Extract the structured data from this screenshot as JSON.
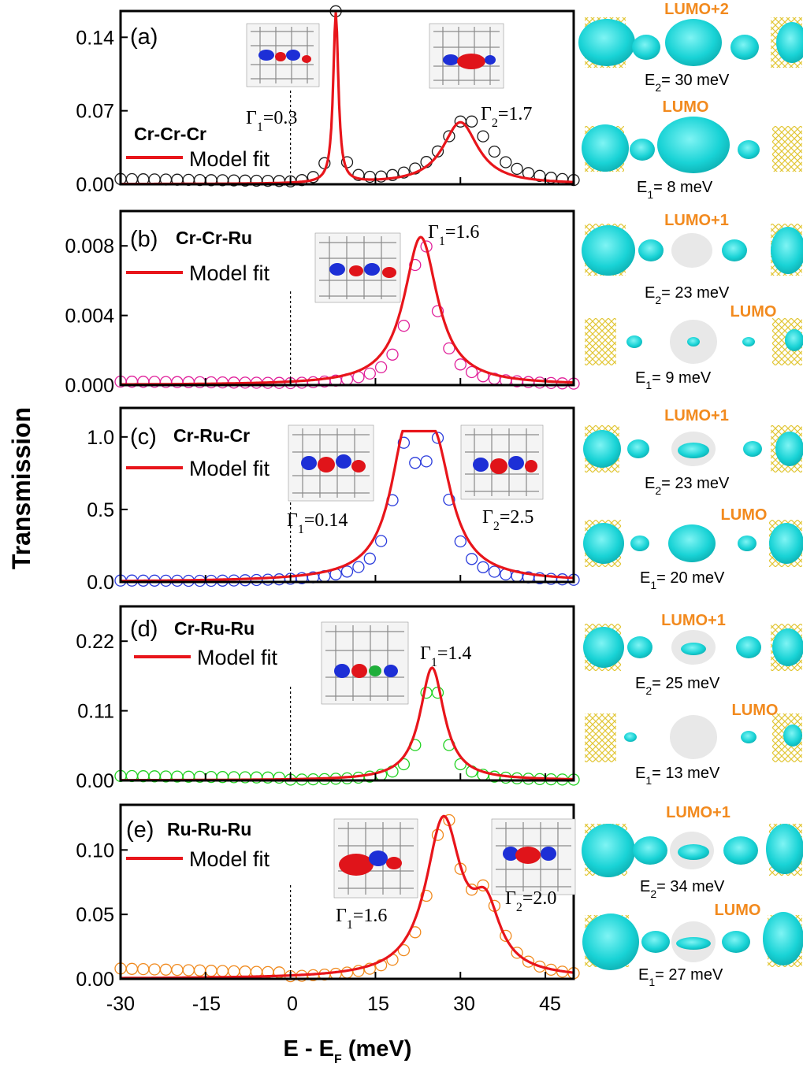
{
  "figure": {
    "ylabel": "Transmission",
    "xlabel_main": "E - E",
    "xlabel_sub": "F",
    "xlabel_unit": " (meV)",
    "legend_label": "Model fit",
    "fit_color": "#e8151b",
    "x_ticks": [
      "-30",
      "-15",
      "0",
      "15",
      "30",
      "45"
    ]
  },
  "chart_data": [
    {
      "type": "line",
      "panel": "(a)",
      "molecule": "Cr-Cr-Cr",
      "xlim": [
        -30,
        50
      ],
      "ylim": [
        0,
        0.165
      ],
      "y_ticks": [
        "0.00",
        "0.07",
        "0.14"
      ],
      "y_tick_values": [
        0,
        0.07,
        0.14
      ],
      "marker_color": "#1a1a1a",
      "gammas": [
        {
          "symbol": "Γ",
          "sub": "1",
          "value": "=0.3"
        },
        {
          "symbol": "Γ",
          "sub": "2",
          "value": "=1.7"
        }
      ],
      "series": [
        {
          "name": "Model fit",
          "kind": "line",
          "peaks": [
            {
              "E": 8,
              "width": 0.55,
              "height": 0.162
            },
            {
              "E": 30,
              "width": 3.8,
              "height": 0.059
            }
          ]
        },
        {
          "kind": "markers",
          "peaks": [
            {
              "E": 8,
              "width": 0.7,
              "height": 0.162
            },
            {
              "E": 31,
              "width": 5.0,
              "height": 0.062
            }
          ],
          "baseline_left": 0.005
        }
      ],
      "orbitals": [
        {
          "label": "LUMO+2",
          "E_label": "E",
          "E_sub": "2",
          "E_value": "= 30 meV"
        },
        {
          "label": "LUMO",
          "E_label": "E",
          "E_sub": "1",
          "E_value": "= 8 meV"
        }
      ]
    },
    {
      "type": "line",
      "panel": "(b)",
      "molecule": "Cr-Cr-Ru",
      "xlim": [
        -30,
        50
      ],
      "ylim": [
        0,
        0.01
      ],
      "y_ticks": [
        "0.000",
        "0.004",
        "0.008"
      ],
      "y_tick_values": [
        0,
        0.004,
        0.008
      ],
      "marker_color": "#e0209a",
      "gammas": [
        {
          "symbol": "Γ",
          "sub": "1",
          "value": "=1.6"
        }
      ],
      "series": [
        {
          "name": "Model fit",
          "kind": "line",
          "peaks": [
            {
              "E": 23,
              "width": 3.6,
              "height": 0.0085
            }
          ]
        },
        {
          "kind": "markers",
          "peaks": [
            {
              "E": 23.3,
              "width": 2.7,
              "height": 0.0085
            }
          ],
          "baseline_left": 0.0002
        }
      ],
      "orbitals": [
        {
          "label": "LUMO+1",
          "E_label": "E",
          "E_sub": "2",
          "E_value": "= 23 meV"
        },
        {
          "label": "LUMO",
          "E_label": "E",
          "E_sub": "1",
          "E_value": "= 9 meV"
        }
      ]
    },
    {
      "type": "line",
      "panel": "(c)",
      "molecule": "Cr-Ru-Cr",
      "xlim": [
        -30,
        50
      ],
      "ylim": [
        0,
        1.2
      ],
      "y_ticks": [
        "0.0",
        "0.5",
        "1.0"
      ],
      "y_tick_values": [
        0,
        0.5,
        1.0
      ],
      "marker_color": "#2a3bdc",
      "gammas": [
        {
          "symbol": "Γ",
          "sub": "1",
          "value": "=0.14"
        },
        {
          "symbol": "Γ",
          "sub": "2",
          "value": "=2.5"
        }
      ],
      "series": [
        {
          "name": "Model fit",
          "kind": "line",
          "peaks": [
            {
              "E": 20.5,
              "width": 3.4,
              "height": 0.86
            },
            {
              "E": 25.5,
              "width": 3.6,
              "height": 0.78
            }
          ],
          "cap": 1.04
        },
        {
          "kind": "markers",
          "peaks": [
            {
              "E": 20.2,
              "width": 2.6,
              "height": 0.83
            },
            {
              "E": 25.8,
              "width": 2.5,
              "height": 0.86
            }
          ],
          "cap": 1.0,
          "baseline_left": 0.01
        }
      ],
      "orbitals": [
        {
          "label": "LUMO+1",
          "E_label": "E",
          "E_sub": "2",
          "E_value": "= 23 meV"
        },
        {
          "label": "LUMO",
          "E_label": "E",
          "E_sub": "1",
          "E_value": "= 20 meV"
        }
      ]
    },
    {
      "type": "line",
      "panel": "(d)",
      "molecule": "Cr-Ru-Ru",
      "xlim": [
        -30,
        50
      ],
      "ylim": [
        0,
        0.275
      ],
      "y_ticks": [
        "0.00",
        "0.11",
        "0.22"
      ],
      "y_tick_values": [
        0,
        0.11,
        0.22
      ],
      "marker_color": "#1fd11f",
      "gammas": [
        {
          "symbol": "Γ",
          "sub": "1",
          "value": "=1.4"
        }
      ],
      "series": [
        {
          "name": "Model fit",
          "kind": "line",
          "peaks": [
            {
              "E": 25,
              "width": 2.6,
              "height": 0.178
            }
          ]
        },
        {
          "kind": "markers",
          "peaks": [
            {
              "E": 25,
              "width": 2.1,
              "height": 0.17
            }
          ],
          "baseline_left": 0.007
        }
      ],
      "orbitals": [
        {
          "label": "LUMO+1",
          "E_label": "E",
          "E_sub": "2",
          "E_value": "= 25 meV"
        },
        {
          "label": "LUMO",
          "E_label": "E",
          "E_sub": "1",
          "E_value": "= 13 meV"
        }
      ]
    },
    {
      "type": "line",
      "panel": "(e)",
      "molecule": "Ru-Ru-Ru",
      "xlim": [
        -30,
        50
      ],
      "ylim": [
        0,
        0.135
      ],
      "y_ticks": [
        "0.00",
        "0.05",
        "0.10"
      ],
      "y_tick_values": [
        0,
        0.05,
        0.1
      ],
      "marker_color": "#f08a1e",
      "gammas": [
        {
          "symbol": "Γ",
          "sub": "1",
          "value": "=1.6"
        },
        {
          "symbol": "Γ",
          "sub": "2",
          "value": "=2.0"
        }
      ],
      "series": [
        {
          "name": "Model fit",
          "kind": "line",
          "peaks": [
            {
              "E": 27,
              "width": 3.8,
              "height": 0.12
            },
            {
              "E": 34.5,
              "width": 3.0,
              "height": 0.045
            }
          ]
        },
        {
          "kind": "markers",
          "peaks": [
            {
              "E": 27.2,
              "width": 3.2,
              "height": 0.12
            },
            {
              "E": 34.5,
              "width": 3.2,
              "height": 0.052
            }
          ],
          "baseline_left": 0.008
        }
      ],
      "orbitals": [
        {
          "label": "LUMO+1",
          "E_label": "E",
          "E_sub": "2",
          "E_value": "= 34 meV"
        },
        {
          "label": "LUMO",
          "E_label": "E",
          "E_sub": "1",
          "E_value": "= 27 meV"
        }
      ]
    }
  ]
}
